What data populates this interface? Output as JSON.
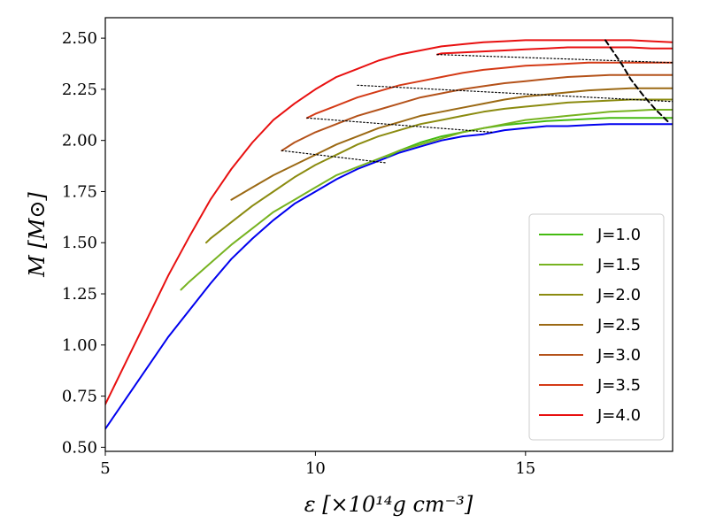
{
  "chart_data": {
    "type": "line",
    "xlabel": "ε [×10¹⁴g cm⁻³]",
    "ylabel": "M [M⊙]",
    "xlim": [
      5,
      18.5
    ],
    "ylim": [
      0.48,
      2.6
    ],
    "xticks": [
      5,
      10,
      15
    ],
    "yticks": [
      0.5,
      0.75,
      1.0,
      1.25,
      1.5,
      1.75,
      2.0,
      2.25,
      2.5
    ],
    "xtick_labels": [
      "5",
      "10",
      "15"
    ],
    "ytick_labels": [
      "0.50",
      "0.75",
      "1.00",
      "1.25",
      "1.50",
      "1.75",
      "2.00",
      "2.25",
      "2.50"
    ],
    "legend_position": "lower-right",
    "series": [
      {
        "color": "#0000ee",
        "style": "solid",
        "in_legend": false,
        "x": [
          5.0,
          5.5,
          6.0,
          6.5,
          7.0,
          7.5,
          8.0,
          8.5,
          9.0,
          9.5,
          10.0,
          10.5,
          11.0,
          11.5,
          12.0,
          12.5,
          13.0,
          13.5,
          14.0,
          14.5,
          15.0,
          15.5,
          16.0,
          16.5,
          17.0,
          17.5,
          18.0,
          18.5
        ],
        "y": [
          0.59,
          0.74,
          0.89,
          1.04,
          1.17,
          1.3,
          1.42,
          1.52,
          1.61,
          1.69,
          1.75,
          1.81,
          1.86,
          1.9,
          1.94,
          1.97,
          2.0,
          2.02,
          2.03,
          2.05,
          2.06,
          2.07,
          2.07,
          2.075,
          2.08,
          2.08,
          2.08,
          2.08
        ]
      },
      {
        "name": "J=1.0",
        "color": "#44bb11",
        "style": "solid",
        "in_legend": true,
        "x": [
          11.7,
          12.0,
          12.5,
          13.0,
          13.5,
          14.0,
          14.5,
          15.0,
          15.5,
          16.0,
          16.5,
          17.0,
          17.5,
          18.0,
          18.5
        ],
        "y": [
          1.92,
          1.95,
          1.99,
          2.02,
          2.04,
          2.06,
          2.075,
          2.085,
          2.095,
          2.1,
          2.105,
          2.11,
          2.11,
          2.11,
          2.11
        ]
      },
      {
        "name": "J=1.5",
        "color": "#77b321",
        "style": "solid",
        "in_legend": true,
        "x": [
          6.8,
          7.0,
          7.5,
          8.0,
          8.5,
          9.0,
          9.5,
          10.0,
          10.5,
          11.0,
          11.5,
          12.0,
          12.5,
          13.0,
          13.5,
          14.0,
          14.5,
          15.0,
          15.5,
          16.0,
          16.5,
          17.0,
          17.5,
          18.0,
          18.5
        ],
        "y": [
          1.27,
          1.31,
          1.4,
          1.49,
          1.57,
          1.65,
          1.71,
          1.77,
          1.83,
          1.87,
          1.91,
          1.95,
          1.98,
          2.01,
          2.04,
          2.06,
          2.08,
          2.1,
          2.11,
          2.12,
          2.13,
          2.14,
          2.145,
          2.15,
          2.15
        ]
      },
      {
        "name": "J=2.0",
        "color": "#8b8b10",
        "style": "solid",
        "in_legend": true,
        "x": [
          7.4,
          7.5,
          8.0,
          8.5,
          9.0,
          9.5,
          10.0,
          10.5,
          11.0,
          11.5,
          12.0,
          12.5,
          13.0,
          13.5,
          14.0,
          14.5,
          15.0,
          15.5,
          16.0,
          16.5,
          17.0,
          17.5,
          18.0,
          18.5
        ],
        "y": [
          1.5,
          1.52,
          1.6,
          1.68,
          1.75,
          1.82,
          1.88,
          1.93,
          1.98,
          2.02,
          2.05,
          2.08,
          2.1,
          2.12,
          2.14,
          2.155,
          2.165,
          2.175,
          2.185,
          2.19,
          2.195,
          2.2,
          2.2,
          2.2
        ]
      },
      {
        "name": "J=2.5",
        "color": "#9b6914",
        "style": "solid",
        "in_legend": true,
        "x": [
          8.0,
          8.5,
          9.0,
          9.5,
          10.0,
          10.5,
          11.0,
          11.5,
          12.0,
          12.5,
          13.0,
          13.5,
          14.0,
          14.5,
          15.0,
          15.5,
          16.0,
          16.5,
          17.0,
          17.5,
          18.0,
          18.5
        ],
        "y": [
          1.71,
          1.77,
          1.83,
          1.88,
          1.93,
          1.98,
          2.02,
          2.06,
          2.09,
          2.12,
          2.14,
          2.16,
          2.18,
          2.2,
          2.215,
          2.225,
          2.235,
          2.245,
          2.25,
          2.255,
          2.255,
          2.255
        ]
      },
      {
        "name": "J=3.0",
        "color": "#b4521a",
        "style": "solid",
        "in_legend": true,
        "x": [
          9.2,
          9.5,
          10.0,
          10.5,
          11.0,
          11.5,
          12.0,
          12.5,
          13.0,
          13.5,
          14.0,
          14.5,
          15.0,
          15.5,
          16.0,
          16.5,
          17.0,
          17.5,
          18.0,
          18.5
        ],
        "y": [
          1.95,
          1.99,
          2.04,
          2.08,
          2.12,
          2.15,
          2.18,
          2.21,
          2.23,
          2.25,
          2.265,
          2.28,
          2.29,
          2.3,
          2.31,
          2.315,
          2.32,
          2.32,
          2.32,
          2.32
        ]
      },
      {
        "name": "J=3.5",
        "color": "#d43a16",
        "style": "solid",
        "in_legend": true,
        "x": [
          9.8,
          10.0,
          10.5,
          11.0,
          11.5,
          12.0,
          12.5,
          13.0,
          13.5,
          14.0,
          14.5,
          15.0,
          15.5,
          16.0,
          16.5,
          17.0,
          17.5,
          18.0,
          18.5
        ],
        "y": [
          2.11,
          2.13,
          2.17,
          2.21,
          2.24,
          2.27,
          2.29,
          2.31,
          2.33,
          2.345,
          2.355,
          2.365,
          2.37,
          2.375,
          2.38,
          2.38,
          2.38,
          2.38,
          2.38
        ]
      },
      {
        "name": "J=4.0",
        "color": "#e81010",
        "style": "solid",
        "in_legend": true,
        "x": [
          12.9,
          13.0,
          13.5,
          14.0,
          14.5,
          15.0,
          15.5,
          16.0,
          16.5,
          17.0,
          17.5,
          18.0,
          18.5
        ],
        "y": [
          2.42,
          2.425,
          2.43,
          2.435,
          2.44,
          2.445,
          2.45,
          2.455,
          2.455,
          2.455,
          2.455,
          2.45,
          2.45
        ]
      },
      {
        "color": "#e81010",
        "style": "solid",
        "in_legend": false,
        "x": [
          5.0,
          5.5,
          6.0,
          6.5,
          7.0,
          7.5,
          8.0,
          8.5,
          9.0,
          9.5,
          10.0,
          10.5,
          11.0,
          11.5,
          12.0,
          12.5,
          13.0,
          13.5,
          14.0,
          14.5,
          15.0,
          15.5,
          16.0,
          16.5,
          17.0,
          17.5,
          18.0,
          18.5
        ],
        "y": [
          0.71,
          0.92,
          1.13,
          1.34,
          1.53,
          1.71,
          1.86,
          1.99,
          2.1,
          2.18,
          2.25,
          2.31,
          2.35,
          2.39,
          2.42,
          2.44,
          2.46,
          2.47,
          2.48,
          2.485,
          2.49,
          2.49,
          2.49,
          2.49,
          2.49,
          2.49,
          2.485,
          2.48
        ]
      },
      {
        "color": "#000000",
        "style": "dotted",
        "in_legend": false,
        "x": [
          9.2,
          11.7
        ],
        "y": [
          1.95,
          1.89
        ]
      },
      {
        "color": "#000000",
        "style": "dotted",
        "in_legend": false,
        "x": [
          9.8,
          14.2
        ],
        "y": [
          2.11,
          2.04
        ]
      },
      {
        "color": "#000000",
        "style": "dotted",
        "in_legend": false,
        "x": [
          11.0,
          18.5
        ],
        "y": [
          2.27,
          2.19
        ]
      },
      {
        "color": "#000000",
        "style": "dotted",
        "in_legend": false,
        "x": [
          12.9,
          18.5
        ],
        "y": [
          2.42,
          2.38
        ]
      },
      {
        "color": "#000000",
        "style": "dashed",
        "in_legend": false,
        "x": [
          16.9,
          17.1,
          17.3,
          17.5,
          17.8,
          18.1,
          18.4
        ],
        "y": [
          2.49,
          2.43,
          2.37,
          2.3,
          2.22,
          2.15,
          2.09
        ]
      }
    ]
  }
}
